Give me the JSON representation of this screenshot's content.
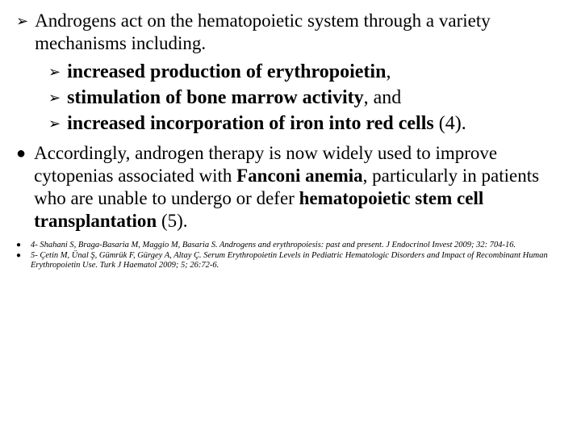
{
  "colors": {
    "background": "#ffffff",
    "text": "#000000"
  },
  "typography": {
    "body_family": "Times New Roman",
    "bullet_family": "Arial"
  },
  "glyphs": {
    "arrow": "➢",
    "dot": "●"
  },
  "intro": {
    "text": "Androgens act on the hematopoietic system through a variety mechanisms including.",
    "fontsize": 23
  },
  "sub_items": [
    {
      "bold": "increased production of erythropoietin",
      "plain": ","
    },
    {
      "bold": "stimulation of bone marrow activity",
      "plain": ", and"
    },
    {
      "bold": "increased incorporation of iron into red cells",
      "plain": " (4)."
    }
  ],
  "second": {
    "pre": "Accordingly, androgen therapy is now widely used to improve cytopenias associated with ",
    "bold1": "Fanconi anemia",
    "mid": ", particularly in patients who are unable to undergo or defer ",
    "bold2": "hematopoietic stem cell transplantation",
    "post": " (5).",
    "fontsize": 23
  },
  "references": [
    "4- Shahani S, Braga-Basaria M, Maggio M, Basaria S. Androgens and erythropoiesis: past and present. J Endocrinol Invest 2009; 32: 704-16.",
    "5- Çetin M, Ünal Ş, Gümrük F, Gürgey A, Altay Ç. Serum Erythropoietin Levels in Pediatric Hematologic Disorders and Impact of Recombinant Human Erythropoietin Use. Turk J Haematol 2009; 5; 26:72-6."
  ]
}
